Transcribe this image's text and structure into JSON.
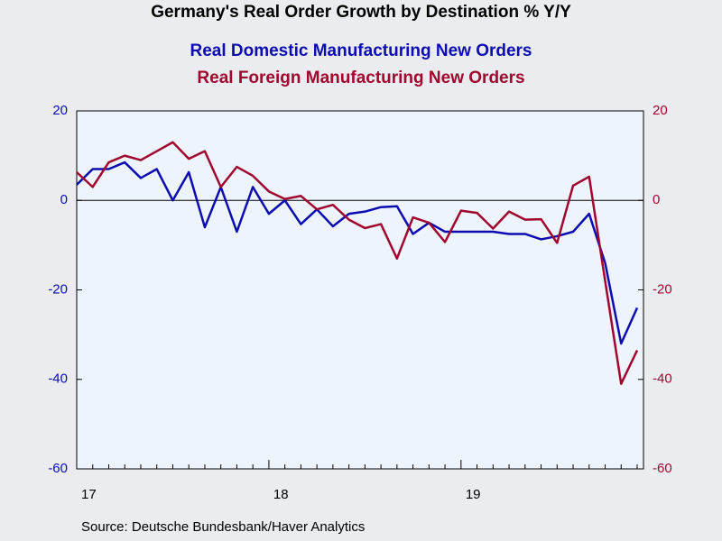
{
  "chart_data": {
    "type": "line",
    "title": "Germany's Real Order Growth by Destination % Y/Y",
    "source": "Source:  Deutsche Bundesbank/Haver Analytics",
    "categories": [
      "17",
      null,
      null,
      null,
      null,
      null,
      null,
      null,
      null,
      null,
      null,
      null,
      "18",
      null,
      null,
      null,
      null,
      null,
      null,
      null,
      null,
      null,
      null,
      null,
      "19",
      null,
      null,
      null,
      null,
      null,
      null,
      null,
      null,
      null,
      null,
      null
    ],
    "series": [
      {
        "name": "Real Domestic Manufacturing New Orders",
        "color": "#0c0cb0",
        "values": [
          3.5,
          7,
          7,
          8.5,
          5,
          7,
          0,
          6.3,
          -6,
          3,
          -7,
          3,
          -3,
          0,
          -5.3,
          -2,
          -5.8,
          -3,
          -2.5,
          -1.5,
          -1.3,
          -7.5,
          -5,
          -7,
          -7,
          -7,
          -7,
          -7.5,
          -7.5,
          -8.7,
          -8,
          -7,
          -3,
          -14,
          -32,
          -24
        ]
      },
      {
        "name": "Real Foreign Manufacturing New Orders",
        "color": "#a0062e",
        "axis": "y2",
        "values": [
          6.3,
          3,
          8.5,
          10,
          9,
          11,
          13,
          9.3,
          11,
          3,
          7.5,
          5.5,
          2,
          0.3,
          1,
          -2,
          -1,
          -4.3,
          -6.2,
          -5.3,
          -13,
          -3.8,
          -5,
          -9.3,
          -2.3,
          -2.8,
          -6.3,
          -2.5,
          -4.3,
          -4.2,
          -9.5,
          3.3,
          5.3,
          -18,
          -41,
          -33.5
        ]
      }
    ],
    "ylim": [
      -60,
      20
    ],
    "yticks": [
      -60,
      -40,
      -20,
      0,
      20
    ],
    "y2lim": [
      -60,
      20
    ],
    "y2ticks": [
      -60,
      -40,
      -20,
      0,
      20
    ],
    "zero_line": true
  }
}
